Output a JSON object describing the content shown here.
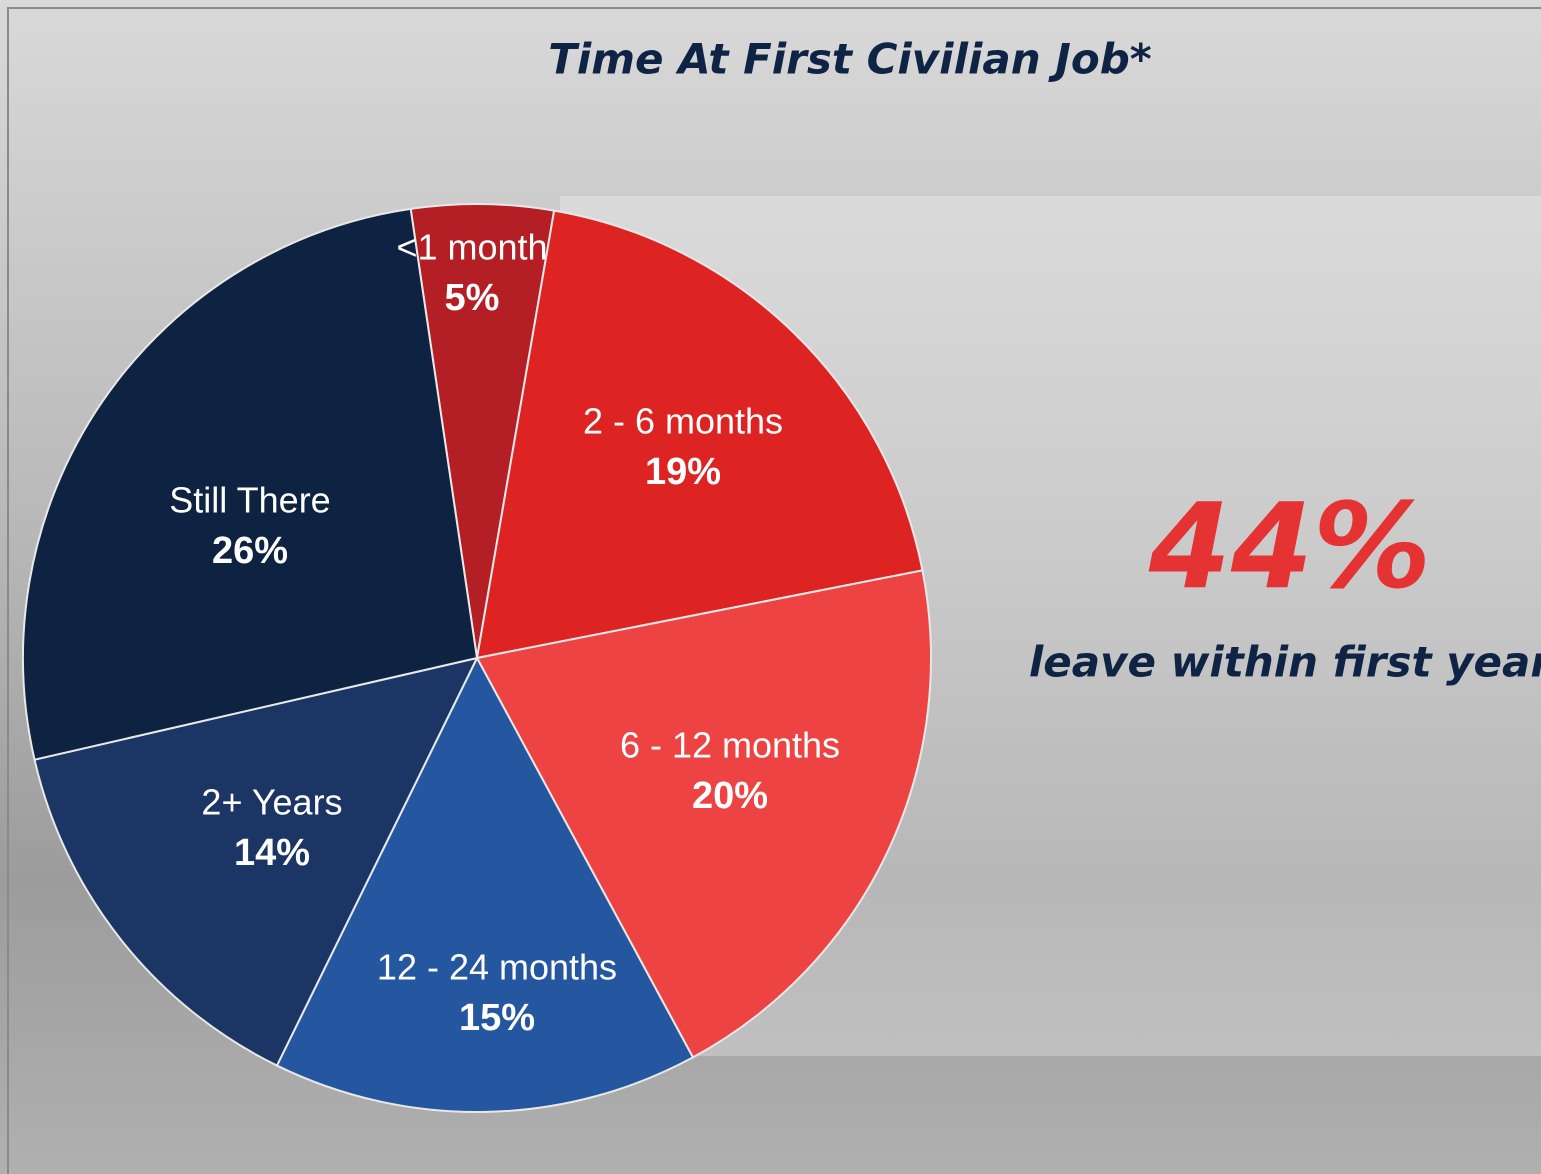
{
  "chart_data": {
    "type": "pie",
    "title": "Time At First Civilian Job*",
    "categories": [
      "<1 month",
      "2 - 6 months",
      "6 - 12 months",
      "12 - 24 months",
      "2+ Years",
      "Still There"
    ],
    "values": [
      5,
      19,
      20,
      15,
      14,
      26
    ],
    "value_labels": [
      "5%",
      "19%",
      "20%",
      "15%",
      "14%",
      "26%"
    ],
    "colors": [
      "#b31f24",
      "#de2323",
      "#ee4343",
      "#2556a0",
      "#1b3565",
      "#0e2241"
    ],
    "annotations": [
      "44%",
      "leave within first year"
    ]
  }
}
